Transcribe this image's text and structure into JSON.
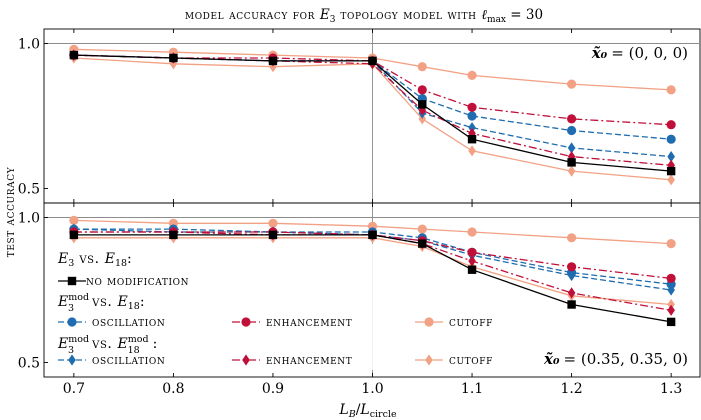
{
  "chart_data": {
    "type": "line",
    "title": "model accuracy for E3 topology model with ℓmax = 30",
    "title_parts": {
      "prefix": "model accuracy for ",
      "model": "E",
      "model_sub": "3",
      "middle": " topology model with ",
      "ell": "ℓ",
      "ell_sub": "max",
      "suffix": " = 30"
    },
    "xlabel": "LB/Lcircle",
    "xlabel_parts": {
      "main": "L",
      "main_sub": "B",
      "sep": "/",
      "denom": "L",
      "denom_sub": "circle"
    },
    "ylabel": "test accuracy",
    "x": [
      0.7,
      0.8,
      0.9,
      1.0,
      1.05,
      1.1,
      1.2,
      1.3
    ],
    "xlim": [
      0.67,
      1.33
    ],
    "xticks": [
      "0.7",
      "0.8",
      "0.9",
      "1.0",
      "1.1",
      "1.2",
      "1.3"
    ],
    "xtick_values": [
      0.7,
      0.8,
      0.9,
      1.0,
      1.1,
      1.2,
      1.3
    ],
    "vline_x": 1.0,
    "hline_y": 1.0,
    "colors": {
      "no_mod": "#000000",
      "oscillation": "#1f6db0",
      "enhancement": "#c0103a",
      "cutoff": "#f2a184",
      "ref_line": "#8c8c8c"
    },
    "panels": [
      {
        "id": "top",
        "ylim": [
          0.45,
          1.05
        ],
        "yticks": [
          "0.5",
          "1.0"
        ],
        "ytick_values": [
          0.5,
          1.0
        ],
        "annotation": {
          "label": "x̃₀",
          "value": "= (0, 0, 0)"
        },
        "series": [
          {
            "key": "none",
            "name": "no modification",
            "values": [
              0.96,
              0.95,
              0.94,
              0.94,
              0.79,
              0.67,
              0.59,
              0.56
            ]
          },
          {
            "key": "osc_s",
            "name": "oscillation (E3mod vs. E18)",
            "values": [
              0.96,
              0.95,
              0.94,
              0.94,
              0.81,
              0.75,
              0.7,
              0.67
            ]
          },
          {
            "key": "enh_s",
            "name": "enhancement (E3mod vs. E18)",
            "values": [
              0.96,
              0.95,
              0.95,
              0.94,
              0.84,
              0.78,
              0.74,
              0.72
            ]
          },
          {
            "key": "cut_s",
            "name": "cutoff (E3mod vs. E18)",
            "values": [
              0.98,
              0.97,
              0.96,
              0.95,
              0.92,
              0.89,
              0.86,
              0.84
            ]
          },
          {
            "key": "osc_d",
            "name": "oscillation (E3mod vs. E18mod)",
            "values": [
              0.96,
              0.95,
              0.94,
              0.94,
              0.76,
              0.71,
              0.64,
              0.61
            ]
          },
          {
            "key": "enh_d",
            "name": "enhancement (E3mod vs. E18mod)",
            "values": [
              0.96,
              0.95,
              0.94,
              0.93,
              0.77,
              0.69,
              0.61,
              0.58
            ]
          },
          {
            "key": "cut_d",
            "name": "cutoff (E3mod vs. E18mod)",
            "values": [
              0.95,
              0.93,
              0.92,
              0.93,
              0.74,
              0.63,
              0.56,
              0.53
            ]
          }
        ]
      },
      {
        "id": "bottom",
        "ylim": [
          0.45,
          1.05
        ],
        "yticks": [
          "0.5",
          "1.0"
        ],
        "ytick_values": [
          0.5,
          1.0
        ],
        "annotation": {
          "label": "x̃₀",
          "value": "= (0.35, 0.35, 0)"
        },
        "series": [
          {
            "key": "none",
            "name": "no modification",
            "values": [
              0.94,
              0.94,
              0.94,
              0.94,
              0.91,
              0.82,
              0.7,
              0.64
            ]
          },
          {
            "key": "osc_s",
            "name": "oscillation (E3mod vs. E18)",
            "values": [
              0.96,
              0.96,
              0.95,
              0.95,
              0.93,
              0.88,
              0.81,
              0.77
            ]
          },
          {
            "key": "enh_s",
            "name": "enhancement (E3mod vs. E18)",
            "values": [
              0.95,
              0.95,
              0.95,
              0.94,
              0.92,
              0.88,
              0.83,
              0.79
            ]
          },
          {
            "key": "cut_s",
            "name": "cutoff (E3mod vs. E18)",
            "values": [
              0.99,
              0.98,
              0.98,
              0.97,
              0.96,
              0.95,
              0.93,
              0.91
            ]
          },
          {
            "key": "osc_d",
            "name": "oscillation (E3mod vs. E18mod)",
            "values": [
              0.96,
              0.95,
              0.95,
              0.94,
              0.92,
              0.87,
              0.8,
              0.75
            ]
          },
          {
            "key": "enh_d",
            "name": "enhancement (E3mod vs. E18mod)",
            "values": [
              0.95,
              0.95,
              0.94,
              0.94,
              0.91,
              0.85,
              0.74,
              0.68
            ]
          },
          {
            "key": "cut_d",
            "name": "cutoff (E3mod vs. E18mod)",
            "values": [
              0.93,
              0.93,
              0.93,
              0.93,
              0.9,
              0.83,
              0.73,
              0.7
            ]
          }
        ]
      }
    ],
    "legend": {
      "placement": "bottom-left",
      "groups": [
        {
          "heading": {
            "a": "E",
            "a_sub": "3",
            "vs": " vs. ",
            "b": "E",
            "b_sub": "18",
            "colon": ":"
          },
          "entries": [
            {
              "key": "none",
              "label": "no modification"
            }
          ]
        },
        {
          "heading": {
            "a": "E",
            "a_sup": "mod",
            "a_sub": "3",
            "vs": " vs. ",
            "b": "E",
            "b_sub": "18",
            "colon": ":"
          },
          "entries": [
            {
              "key": "osc_s",
              "label": "oscillation"
            },
            {
              "key": "enh_s",
              "label": "enhancement"
            },
            {
              "key": "cut_s",
              "label": "cutoff"
            }
          ]
        },
        {
          "heading": {
            "a": "E",
            "a_sup": "mod",
            "a_sub": "3",
            "vs": " vs. ",
            "b": "E",
            "b_sup": "mod",
            "b_sub": "18",
            "colon": ":"
          },
          "entries": [
            {
              "key": "osc_d",
              "label": "oscillation"
            },
            {
              "key": "enh_d",
              "label": "enhancement"
            },
            {
              "key": "cut_d",
              "label": "cutoff"
            }
          ]
        }
      ]
    }
  }
}
